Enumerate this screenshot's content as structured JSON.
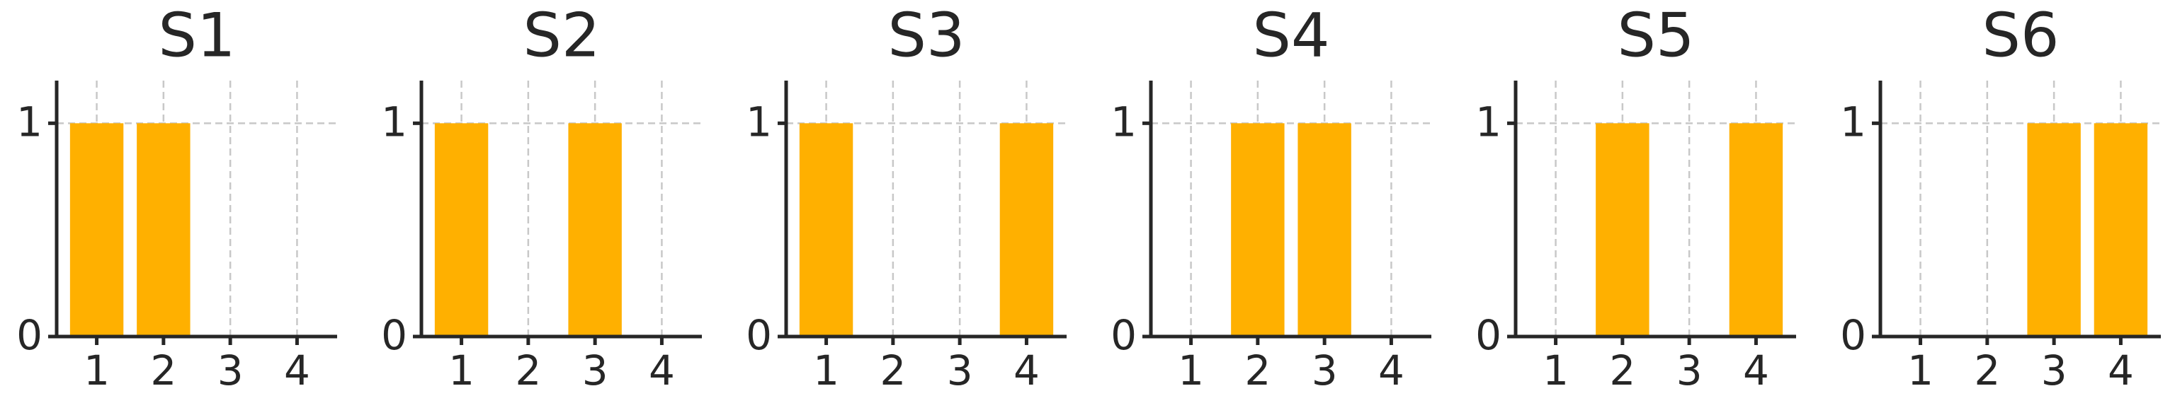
{
  "chart_data": [
    {
      "type": "bar",
      "title": "S1",
      "categories": [
        "1",
        "2",
        "3",
        "4"
      ],
      "values": [
        1,
        1,
        0,
        0
      ],
      "color": "#ffb000",
      "ylim": [
        0,
        1.2
      ],
      "yticks": [
        0,
        1
      ],
      "grid": true
    },
    {
      "type": "bar",
      "title": "S2",
      "categories": [
        "1",
        "2",
        "3",
        "4"
      ],
      "values": [
        1,
        0,
        1,
        0
      ],
      "color": "#ffb000",
      "ylim": [
        0,
        1.2
      ],
      "yticks": [
        0,
        1
      ],
      "grid": true
    },
    {
      "type": "bar",
      "title": "S3",
      "categories": [
        "1",
        "2",
        "3",
        "4"
      ],
      "values": [
        1,
        0,
        0,
        1
      ],
      "color": "#ffb000",
      "ylim": [
        0,
        1.2
      ],
      "yticks": [
        0,
        1
      ],
      "grid": true
    },
    {
      "type": "bar",
      "title": "S4",
      "categories": [
        "1",
        "2",
        "3",
        "4"
      ],
      "values": [
        0,
        1,
        1,
        0
      ],
      "color": "#ffb000",
      "ylim": [
        0,
        1.2
      ],
      "yticks": [
        0,
        1
      ],
      "grid": true
    },
    {
      "type": "bar",
      "title": "S5",
      "categories": [
        "1",
        "2",
        "3",
        "4"
      ],
      "values": [
        0,
        1,
        0,
        1
      ],
      "color": "#ffb000",
      "ylim": [
        0,
        1.2
      ],
      "yticks": [
        0,
        1
      ],
      "grid": true
    },
    {
      "type": "bar",
      "title": "S6",
      "categories": [
        "1",
        "2",
        "3",
        "4"
      ],
      "values": [
        0,
        0,
        1,
        1
      ],
      "color": "#ffb000",
      "ylim": [
        0,
        1.2
      ],
      "yticks": [
        0,
        1
      ],
      "grid": true
    }
  ]
}
